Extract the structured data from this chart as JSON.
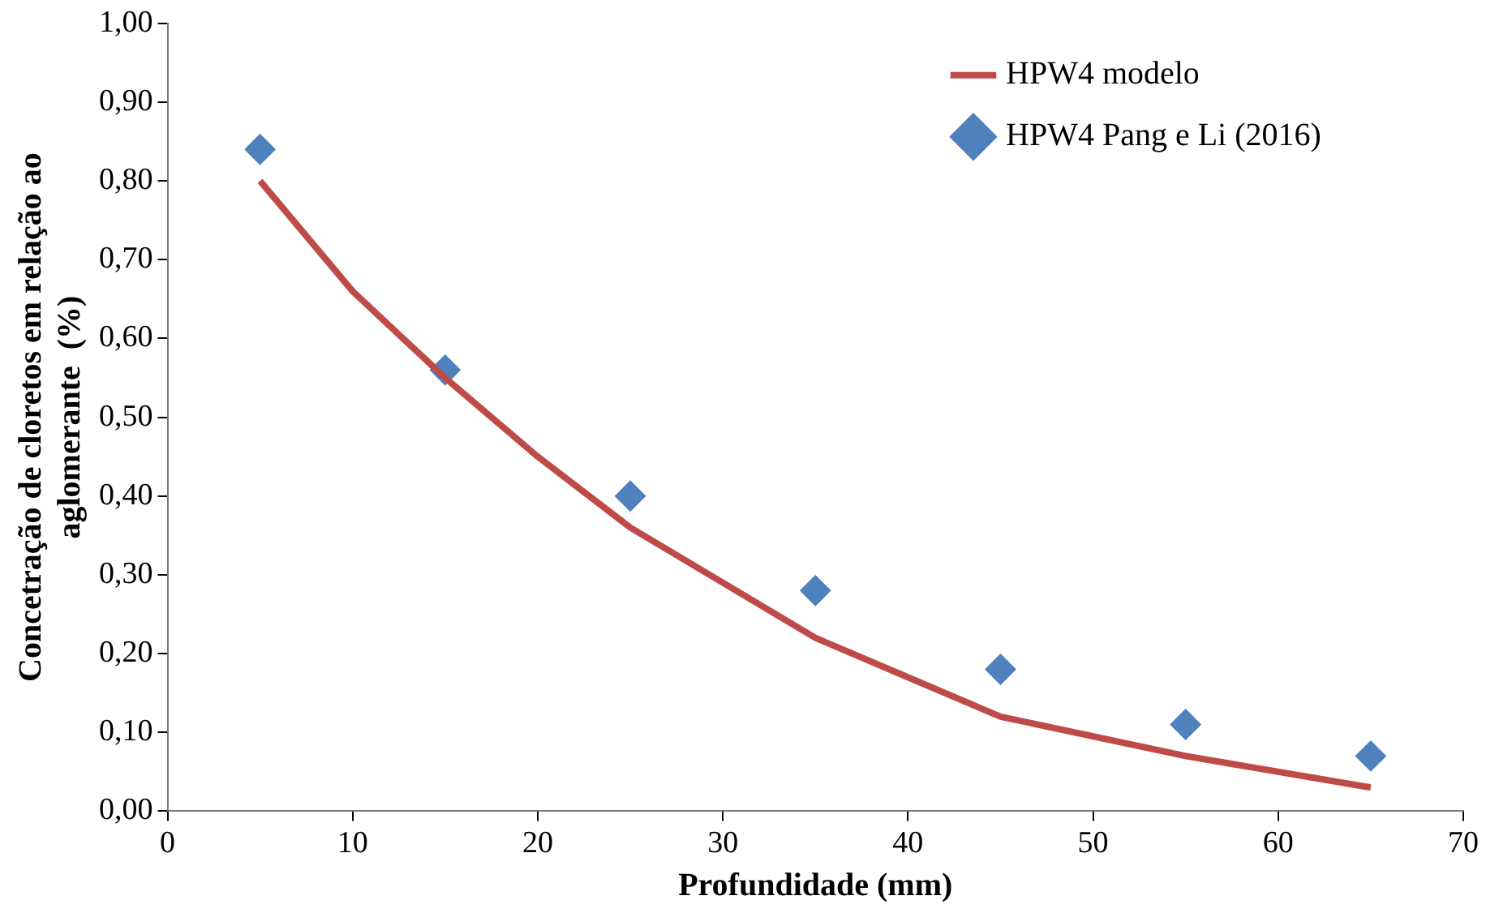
{
  "chart_data": {
    "type": "line",
    "xlabel": "Profundidade (mm)",
    "ylabel": "Concetração de cloretos em relação ao aglomerante  (%)",
    "xlim": [
      0,
      70
    ],
    "xticks": [
      0,
      10,
      20,
      30,
      40,
      50,
      60,
      70
    ],
    "ylim": [
      0,
      1
    ],
    "yticks": [
      {
        "value": 0,
        "label": "0,00"
      },
      {
        "value": 0.1,
        "label": "0,10"
      },
      {
        "value": 0.2,
        "label": "0,20"
      },
      {
        "value": 0.3,
        "label": "0,30"
      },
      {
        "value": 0.4,
        "label": "0,40"
      },
      {
        "value": 0.5,
        "label": "0,50"
      },
      {
        "value": 0.6,
        "label": "0,60"
      },
      {
        "value": 0.7,
        "label": "0,70"
      },
      {
        "value": 0.8,
        "label": "0,80"
      },
      {
        "value": 0.9,
        "label": "0,90"
      },
      {
        "value": 1,
        "label": "1,00"
      }
    ],
    "grid": false,
    "legend": "top right",
    "series": [
      {
        "name": "HPW4 modelo",
        "color": "#be4b48",
        "marker": "none",
        "x": [
          5,
          10,
          15,
          20,
          25,
          30,
          35,
          40,
          45,
          55,
          65
        ],
        "values": [
          0.8,
          0.66,
          0.55,
          0.45,
          0.36,
          0.29,
          0.22,
          0.17,
          0.12,
          0.07,
          0.03
        ]
      },
      {
        "name": "HPW4 Pang e Li (2016)",
        "type": "scatter",
        "color": "#4f81bd",
        "marker": "diamond",
        "x": [
          5,
          15,
          25,
          35,
          45,
          55,
          65
        ],
        "values": [
          0.84,
          0.56,
          0.4,
          0.28,
          0.18,
          0.11,
          0.07
        ]
      }
    ]
  }
}
